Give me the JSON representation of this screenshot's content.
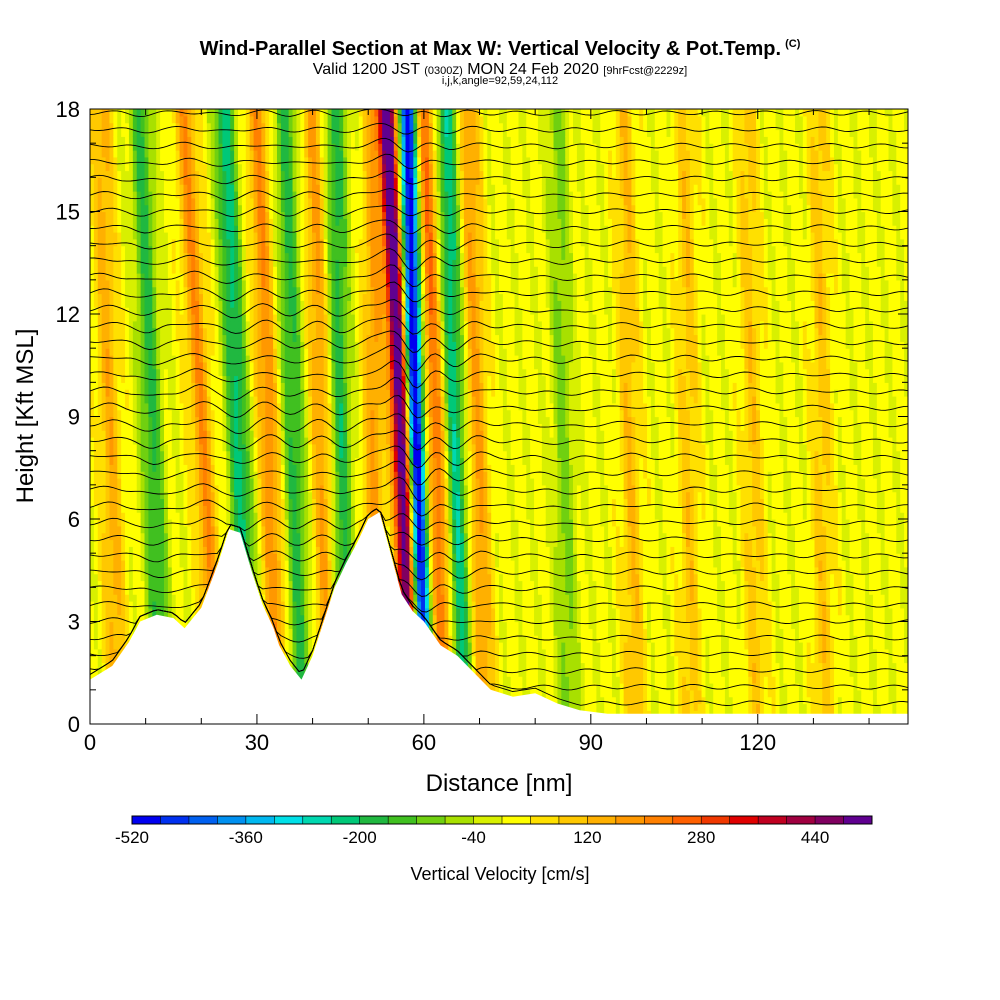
{
  "title": {
    "main": "Wind-Parallel Section at Max W: Vertical Velocity & Pot.Temp.",
    "copyright": "(C)",
    "valid_prefix": "Valid 1200 JST",
    "valid_utc": "(0300Z)",
    "valid_date": "MON 24 Feb 2020",
    "forecast": "[9hrFcst@2229z]",
    "indices": "i,j,k,angle=92,59,24,112"
  },
  "chart_data": {
    "type": "heatmap",
    "xlabel": "Distance [nm]",
    "ylabel": "Height [Kft MSL]",
    "xlim": [
      0,
      147
    ],
    "ylim": [
      0,
      18
    ],
    "x_ticks": [
      0,
      30,
      60,
      90,
      120
    ],
    "y_ticks": [
      0,
      3,
      6,
      9,
      12,
      15,
      18
    ],
    "colorbar": {
      "label": "Vertical Velocity [cm/s]",
      "min": -520,
      "max": 520,
      "step": 40,
      "tick_labels": [
        "-520",
        "-360",
        "-200",
        "-40",
        "120",
        "280",
        "440"
      ],
      "colors": [
        "#0000f0",
        "#0030f0",
        "#0060f0",
        "#0090f0",
        "#00b8f0",
        "#00e0e8",
        "#00d8b0",
        "#00c878",
        "#20b840",
        "#40c020",
        "#70d010",
        "#a8e000",
        "#d8f000",
        "#ffff00",
        "#ffe000",
        "#ffc800",
        "#ffb000",
        "#ff9800",
        "#ff8000",
        "#ff6000",
        "#f03800",
        "#e00000",
        "#c00020",
        "#a00040",
        "#800060",
        "#600090"
      ]
    },
    "terrain_kft": [
      [
        0,
        1.3
      ],
      [
        4,
        1.7
      ],
      [
        7,
        2.4
      ],
      [
        9,
        3.0
      ],
      [
        12,
        3.2
      ],
      [
        15,
        3.1
      ],
      [
        17,
        2.8
      ],
      [
        20,
        3.4
      ],
      [
        23,
        4.7
      ],
      [
        25,
        5.7
      ],
      [
        27,
        5.6
      ],
      [
        29,
        4.5
      ],
      [
        31,
        3.5
      ],
      [
        33,
        2.8
      ],
      [
        34,
        2.3
      ],
      [
        36,
        1.7
      ],
      [
        38,
        1.3
      ],
      [
        40,
        2.0
      ],
      [
        42,
        3.0
      ],
      [
        44,
        4.0
      ],
      [
        46,
        4.7
      ],
      [
        48,
        5.3
      ],
      [
        50,
        6.0
      ],
      [
        52,
        6.2
      ],
      [
        54,
        5.0
      ],
      [
        56,
        3.8
      ],
      [
        58,
        3.3
      ],
      [
        60,
        3.0
      ],
      [
        63,
        2.3
      ],
      [
        66,
        2.0
      ],
      [
        69,
        1.5
      ],
      [
        72,
        1.0
      ],
      [
        76,
        0.8
      ],
      [
        80,
        0.9
      ],
      [
        84,
        0.6
      ],
      [
        88,
        0.4
      ],
      [
        93,
        0.3
      ],
      [
        100,
        0.3
      ],
      [
        110,
        0.3
      ],
      [
        120,
        0.3
      ],
      [
        130,
        0.3
      ],
      [
        147,
        0.3
      ]
    ],
    "updraft_bands_nm": [
      {
        "x0": 5,
        "x1": 2,
        "sign": 1,
        "amp": 0.35
      },
      {
        "x0": 13,
        "x1": 9,
        "sign": -1,
        "amp": 0.55
      },
      {
        "x0": 23,
        "x1": 17,
        "sign": 1,
        "amp": 0.55
      },
      {
        "x0": 29,
        "x1": 24,
        "sign": -1,
        "amp": 0.75
      },
      {
        "x0": 34,
        "x1": 30,
        "sign": 1,
        "amp": 0.55
      },
      {
        "x0": 38,
        "x1": 35,
        "sign": -1,
        "amp": 0.55
      },
      {
        "x0": 43,
        "x1": 40,
        "sign": 1,
        "amp": 0.45
      },
      {
        "x0": 46,
        "x1": 44,
        "sign": -1,
        "amp": 0.6
      },
      {
        "x0": 51,
        "x1": 51,
        "sign": 1,
        "amp": 0.45
      },
      {
        "x0": 58,
        "x1": 53.5,
        "sign": 1,
        "amp": 1.0
      },
      {
        "x0": 60,
        "x1": 57,
        "sign": -1,
        "amp": 1.0
      },
      {
        "x0": 64,
        "x1": 60,
        "sign": 1,
        "amp": 0.75
      },
      {
        "x0": 67,
        "x1": 64,
        "sign": -1,
        "amp": 0.8
      },
      {
        "x0": 71,
        "x1": 68,
        "sign": 1,
        "amp": 0.45
      },
      {
        "x0": 86,
        "x1": 84,
        "sign": -1,
        "amp": 0.25
      },
      {
        "x0": 98,
        "x1": 96,
        "sign": 1,
        "amp": 0.25
      },
      {
        "x0": 108,
        "x1": 107,
        "sign": 1,
        "amp": 0.2
      },
      {
        "x0": 120,
        "x1": 118,
        "sign": 1,
        "amp": 0.2
      },
      {
        "x0": 132,
        "x1": 131,
        "sign": 1,
        "amp": 0.2
      }
    ]
  }
}
